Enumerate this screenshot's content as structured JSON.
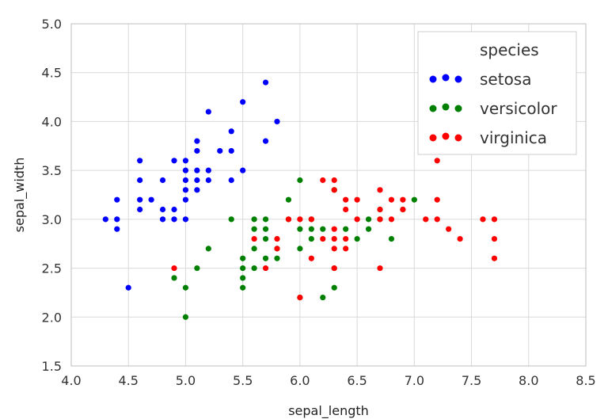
{
  "chart_data": {
    "type": "scatter",
    "xlabel": "sepal_length",
    "ylabel": "sepal_width",
    "xlim": [
      4.0,
      8.5
    ],
    "ylim": [
      1.5,
      5.0
    ],
    "xticks": [
      "4.0",
      "4.5",
      "5.0",
      "5.5",
      "6.0",
      "6.5",
      "7.0",
      "7.5",
      "8.0",
      "8.5"
    ],
    "yticks": [
      "1.5",
      "2.0",
      "2.5",
      "3.0",
      "3.5",
      "4.0",
      "4.5",
      "5.0"
    ],
    "grid": true,
    "legend": {
      "title": "species",
      "placement": "top-right"
    },
    "series": [
      {
        "name": "setosa",
        "color": "#0000ff",
        "points": [
          [
            4.3,
            3.0
          ],
          [
            4.4,
            3.2
          ],
          [
            4.4,
            3.0
          ],
          [
            4.4,
            2.9
          ],
          [
            4.5,
            2.3
          ],
          [
            4.6,
            3.6
          ],
          [
            4.6,
            3.4
          ],
          [
            4.6,
            3.2
          ],
          [
            4.6,
            3.1
          ],
          [
            4.7,
            3.2
          ],
          [
            4.8,
            3.4
          ],
          [
            4.8,
            3.1
          ],
          [
            4.8,
            3.0
          ],
          [
            4.9,
            3.6
          ],
          [
            4.9,
            3.1
          ],
          [
            4.9,
            3.0
          ],
          [
            5.0,
            3.6
          ],
          [
            5.0,
            3.5
          ],
          [
            5.0,
            3.4
          ],
          [
            5.0,
            3.3
          ],
          [
            5.0,
            3.2
          ],
          [
            5.0,
            3.0
          ],
          [
            5.1,
            3.8
          ],
          [
            5.1,
            3.7
          ],
          [
            5.1,
            3.5
          ],
          [
            5.1,
            3.4
          ],
          [
            5.1,
            3.3
          ],
          [
            5.2,
            4.1
          ],
          [
            5.2,
            3.5
          ],
          [
            5.2,
            3.4
          ],
          [
            5.3,
            3.7
          ],
          [
            5.4,
            3.9
          ],
          [
            5.4,
            3.7
          ],
          [
            5.4,
            3.4
          ],
          [
            5.5,
            4.2
          ],
          [
            5.5,
            3.5
          ],
          [
            5.7,
            4.4
          ],
          [
            5.7,
            3.8
          ],
          [
            5.8,
            4.0
          ]
        ]
      },
      {
        "name": "versicolor",
        "color": "#008000",
        "points": [
          [
            4.9,
            2.4
          ],
          [
            5.0,
            2.0
          ],
          [
            5.0,
            2.3
          ],
          [
            5.1,
            2.5
          ],
          [
            5.2,
            2.7
          ],
          [
            5.4,
            3.0
          ],
          [
            5.5,
            2.6
          ],
          [
            5.5,
            2.5
          ],
          [
            5.5,
            2.4
          ],
          [
            5.5,
            2.3
          ],
          [
            5.6,
            3.0
          ],
          [
            5.6,
            2.9
          ],
          [
            5.6,
            2.7
          ],
          [
            5.6,
            2.5
          ],
          [
            5.7,
            3.0
          ],
          [
            5.7,
            2.9
          ],
          [
            5.7,
            2.8
          ],
          [
            5.7,
            2.6
          ],
          [
            5.8,
            2.7
          ],
          [
            5.8,
            2.6
          ],
          [
            5.9,
            3.2
          ],
          [
            5.9,
            3.0
          ],
          [
            6.0,
            3.4
          ],
          [
            6.0,
            2.9
          ],
          [
            6.0,
            2.7
          ],
          [
            6.0,
            2.2
          ],
          [
            6.1,
            3.0
          ],
          [
            6.1,
            2.9
          ],
          [
            6.1,
            2.8
          ],
          [
            6.2,
            2.9
          ],
          [
            6.2,
            2.2
          ],
          [
            6.3,
            3.3
          ],
          [
            6.3,
            2.5
          ],
          [
            6.3,
            2.3
          ],
          [
            6.4,
            2.9
          ],
          [
            6.5,
            2.8
          ],
          [
            6.6,
            3.0
          ],
          [
            6.6,
            2.9
          ],
          [
            6.7,
            3.1
          ],
          [
            6.7,
            3.0
          ],
          [
            6.8,
            2.8
          ],
          [
            6.9,
            3.1
          ],
          [
            7.0,
            3.2
          ]
        ]
      },
      {
        "name": "virginica",
        "color": "#ff0000",
        "points": [
          [
            4.9,
            2.5
          ],
          [
            5.6,
            2.8
          ],
          [
            5.7,
            2.5
          ],
          [
            5.8,
            2.8
          ],
          [
            5.8,
            2.7
          ],
          [
            5.9,
            3.0
          ],
          [
            6.0,
            3.0
          ],
          [
            6.0,
            2.2
          ],
          [
            6.1,
            3.0
          ],
          [
            6.1,
            2.6
          ],
          [
            6.2,
            3.4
          ],
          [
            6.2,
            2.8
          ],
          [
            6.3,
            3.4
          ],
          [
            6.3,
            3.3
          ],
          [
            6.3,
            2.9
          ],
          [
            6.3,
            2.8
          ],
          [
            6.3,
            2.7
          ],
          [
            6.3,
            2.5
          ],
          [
            6.4,
            3.2
          ],
          [
            6.4,
            3.1
          ],
          [
            6.4,
            2.8
          ],
          [
            6.4,
            2.7
          ],
          [
            6.5,
            3.2
          ],
          [
            6.5,
            3.0
          ],
          [
            6.7,
            3.3
          ],
          [
            6.7,
            3.1
          ],
          [
            6.7,
            3.0
          ],
          [
            6.7,
            2.5
          ],
          [
            6.8,
            3.2
          ],
          [
            6.8,
            3.0
          ],
          [
            6.9,
            3.2
          ],
          [
            6.9,
            3.1
          ],
          [
            7.1,
            3.0
          ],
          [
            7.2,
            3.6
          ],
          [
            7.2,
            3.2
          ],
          [
            7.2,
            3.0
          ],
          [
            7.3,
            2.9
          ],
          [
            7.4,
            2.8
          ],
          [
            7.6,
            3.0
          ],
          [
            7.7,
            3.0
          ],
          [
            7.7,
            2.8
          ],
          [
            7.7,
            2.6
          ]
        ]
      }
    ]
  }
}
